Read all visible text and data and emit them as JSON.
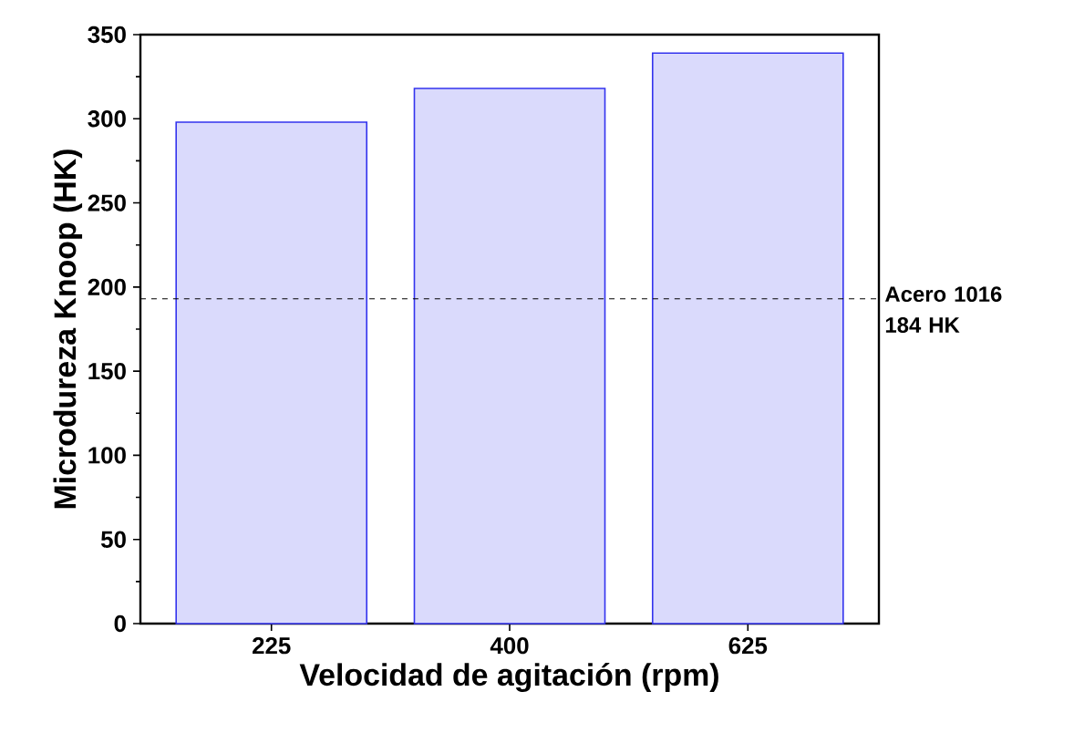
{
  "chart_data": {
    "type": "bar",
    "xlabel": "Velocidad de agitación (rpm)",
    "ylabel": "Microdureza Knoop (HK)",
    "categories": [
      "225",
      "400",
      "625"
    ],
    "values": [
      298,
      318,
      339
    ],
    "color": "#3333ee",
    "ylim": [
      0,
      350
    ],
    "yticks": [
      0,
      50,
      100,
      150,
      200,
      250,
      300,
      350
    ],
    "ref_lines": [
      {
        "axis": "y",
        "value": 193,
        "label": "Acero 1016 184 HK",
        "line_style": "dashed",
        "color": "#000000"
      }
    ]
  }
}
